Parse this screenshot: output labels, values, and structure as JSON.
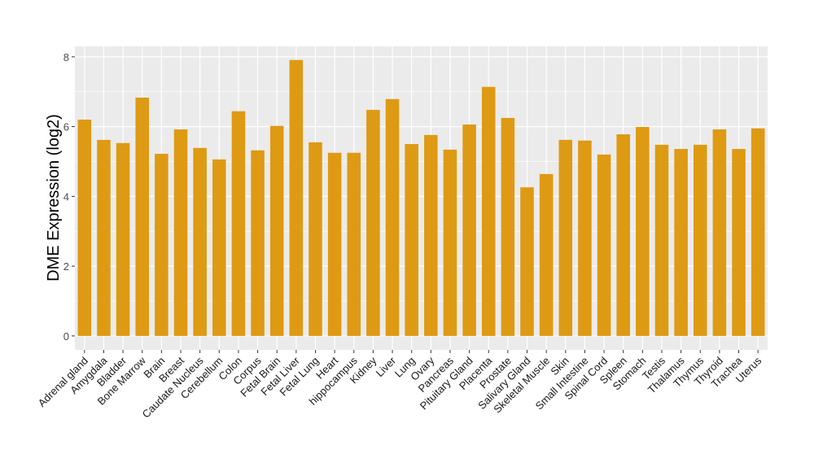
{
  "chart_data": {
    "type": "bar",
    "title": "",
    "xlabel": "",
    "ylabel": "DME Expression (log2)",
    "ylim": [
      -0.4,
      8.3
    ],
    "yticks": [
      0,
      2,
      4,
      6,
      8
    ],
    "grid": true,
    "bar_color": "#DE9A13",
    "panel_color": "#EBEBEB",
    "categories": [
      "Adrenal gland",
      "Amygdala",
      "Bladder",
      "Bone Marrow",
      "Brain",
      "Breast",
      "Caudate Nucleus",
      "Cerebellum",
      "Colon",
      "Corpus",
      "Fetal Brain",
      "Fetal Liver",
      "Fetal Lung",
      "Heart",
      "hippocampus",
      "Kidney",
      "Liver",
      "Lung",
      "Ovary",
      "Pancreas",
      "Pituitary Gland",
      "Placenta",
      "Prostate",
      "Salivary Gland",
      "Skeletal Muscle",
      "Skin",
      "Small Intestine",
      "Spinal Cord",
      "Spleen",
      "Stomach",
      "Testis",
      "Thalamus",
      "Thymus",
      "Thyroid",
      "Trachea",
      "Uterus"
    ],
    "values": [
      6.2,
      5.62,
      5.53,
      6.83,
      5.22,
      5.92,
      5.39,
      5.06,
      6.44,
      5.32,
      6.02,
      7.91,
      5.55,
      5.25,
      5.25,
      6.48,
      6.79,
      5.5,
      5.76,
      5.34,
      6.06,
      7.14,
      6.25,
      4.26,
      4.64,
      5.62,
      5.6,
      5.2,
      5.78,
      5.99,
      5.48,
      5.36,
      5.48,
      5.92,
      5.36,
      5.95
    ]
  }
}
